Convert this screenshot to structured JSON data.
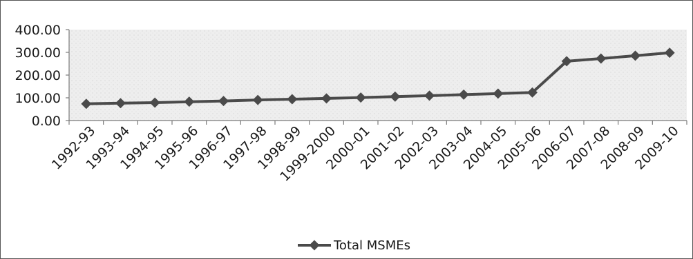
{
  "chart_data": {
    "type": "line",
    "title": "",
    "xlabel": "",
    "ylabel": "",
    "categories": [
      "1992-93",
      "1993-94",
      "1994-95",
      "1995-96",
      "1996-97",
      "1997-98",
      "1998-99",
      "1999-2000",
      "2000-01",
      "2001-02",
      "2002-03",
      "2003-04",
      "2004-05",
      "2005-06",
      "2006-07",
      "2007-08",
      "2008-09",
      "2009-10"
    ],
    "series": [
      {
        "name": "Total MSMEs",
        "values": [
          73.5,
          76.5,
          78.8,
          82.8,
          86.1,
          90.5,
          93.9,
          97.2,
          101.1,
          105.2,
          109.5,
          113.9,
          118.6,
          123.4,
          261.0,
          272.8,
          285.2,
          298.1
        ]
      }
    ],
    "y_ticks": [
      "0.00",
      "100.00",
      "200.00",
      "300.00",
      "400.00"
    ],
    "ylim": [
      0,
      400
    ],
    "grid": false,
    "legend": "bottom-center",
    "colors": {
      "line": "#4a4a4a",
      "marker": "#4a4a4a",
      "plot_bg": "#eeeeee",
      "axis": "#7a7a7a"
    }
  }
}
